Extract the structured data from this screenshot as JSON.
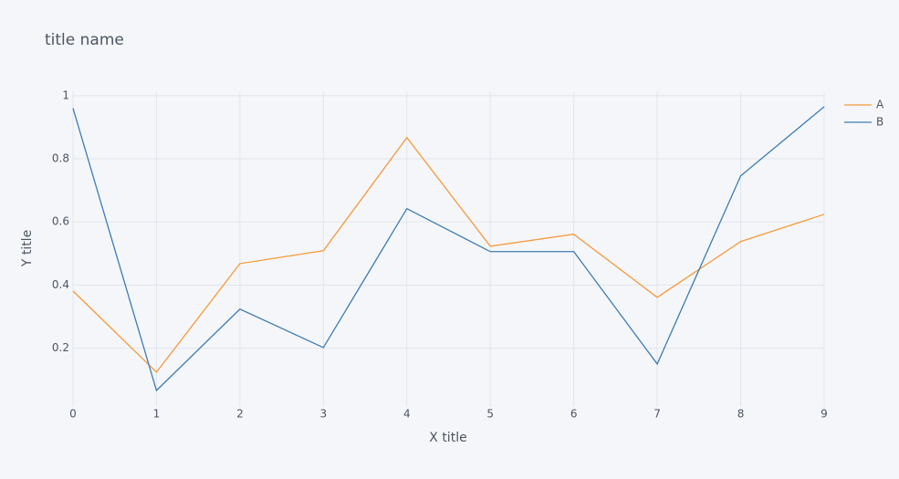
{
  "chart_data": {
    "type": "line",
    "title": "title name",
    "x_label": "X title",
    "y_label": "Y title",
    "x": [
      0,
      1,
      2,
      3,
      4,
      5,
      6,
      7,
      8,
      9
    ],
    "series": [
      {
        "name": "A",
        "color": "#f59a3b",
        "values": [
          0.381,
          0.124,
          0.468,
          0.509,
          0.867,
          0.523,
          0.561,
          0.361,
          0.538,
          0.624
        ]
      },
      {
        "name": "B",
        "color": "#3d7cb4",
        "values": [
          0.96,
          0.066,
          0.324,
          0.202,
          0.642,
          0.506,
          0.506,
          0.15,
          0.746,
          0.965
        ]
      }
    ],
    "xlim": [
      0,
      9
    ],
    "xticks": [
      0,
      1,
      2,
      3,
      4,
      5,
      6,
      7,
      8,
      9
    ],
    "ylim": [
      0.014,
      1.014
    ],
    "yticks": [
      0.2,
      0.4,
      0.6,
      0.8,
      1
    ],
    "grid": true,
    "legend": "top-right"
  }
}
